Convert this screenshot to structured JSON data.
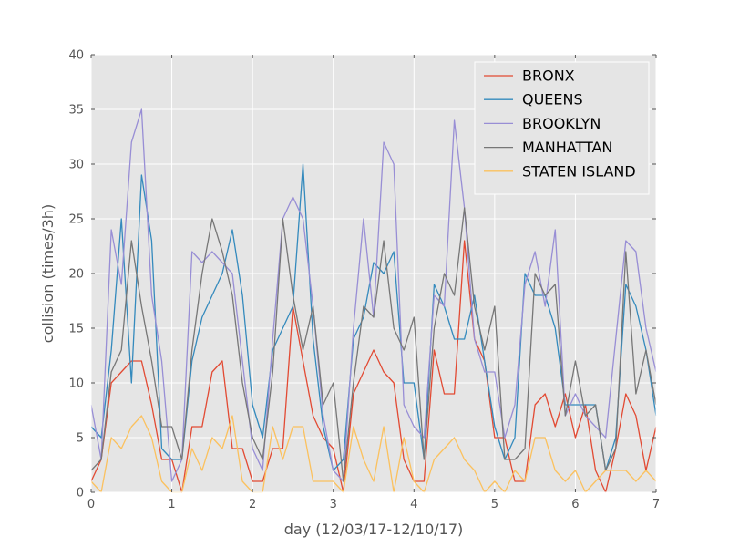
{
  "chart_data": {
    "type": "line",
    "title": "",
    "xlabel": "day (12/03/17-12/10/17)",
    "ylabel": "collision (times/3h)",
    "xlim": [
      0,
      7
    ],
    "ylim": [
      0,
      40
    ],
    "xticks": [
      "0",
      "1",
      "2",
      "3",
      "4",
      "5",
      "6",
      "7"
    ],
    "yticks": [
      "0",
      "5",
      "10",
      "15",
      "20",
      "25",
      "30",
      "35",
      "40"
    ],
    "grid": true,
    "background": "#e5e5e5",
    "legend_position": "top-right",
    "x_step": 0.125,
    "series": [
      {
        "name": "BRONX",
        "color": "#e24a33",
        "values": [
          1,
          3,
          10,
          11,
          12,
          12,
          8,
          3,
          3,
          0,
          6,
          6,
          11,
          12,
          4,
          4,
          1,
          1,
          4,
          4,
          17,
          12,
          7,
          5,
          4,
          0,
          9,
          11,
          13,
          11,
          10,
          3,
          1,
          1,
          13,
          9,
          9,
          23,
          14,
          12,
          5,
          5,
          1,
          1,
          8,
          9,
          6,
          9,
          5,
          8,
          2,
          0,
          4,
          9,
          7,
          2,
          6
        ]
      },
      {
        "name": "QUEENS",
        "color": "#348abd",
        "values": [
          6,
          5,
          13,
          25,
          10,
          29,
          23,
          4,
          3,
          3,
          12,
          16,
          18,
          20,
          24,
          18,
          8,
          5,
          13,
          15,
          17,
          30,
          14,
          6,
          2,
          3,
          14,
          16,
          21,
          20,
          22,
          10,
          10,
          3,
          19,
          17,
          14,
          14,
          18,
          12,
          6,
          3,
          5,
          20,
          18,
          18,
          15,
          8,
          8,
          8,
          8,
          2,
          5,
          19,
          17,
          13,
          7
        ]
      },
      {
        "name": "BROOKLYN",
        "color": "#988ed5",
        "values": [
          8,
          3,
          24,
          19,
          32,
          35,
          18,
          12,
          1,
          3,
          22,
          21,
          22,
          21,
          20,
          12,
          4,
          2,
          14,
          25,
          27,
          25,
          17,
          7,
          2,
          1,
          15,
          25,
          16,
          32,
          30,
          8,
          6,
          5,
          18,
          17,
          34,
          26,
          14,
          11,
          11,
          5,
          8,
          19,
          22,
          17,
          24,
          7,
          9,
          7,
          6,
          5,
          14,
          23,
          22,
          15,
          11
        ]
      },
      {
        "name": "MANHATTAN",
        "color": "#777777",
        "values": [
          2,
          3,
          11,
          13,
          23,
          17,
          12,
          6,
          6,
          3,
          13,
          20,
          25,
          22,
          18,
          10,
          5,
          3,
          11,
          25,
          18,
          13,
          17,
          8,
          10,
          1,
          10,
          17,
          16,
          23,
          15,
          13,
          16,
          3,
          15,
          20,
          18,
          26,
          17,
          13,
          17,
          3,
          3,
          4,
          20,
          18,
          19,
          7,
          12,
          7,
          8,
          2,
          4,
          22,
          9,
          13,
          8
        ]
      },
      {
        "name": "STATEN ISLAND",
        "color": "#fbc15e",
        "values": [
          1,
          0,
          5,
          4,
          6,
          7,
          5,
          1,
          0,
          0,
          4,
          2,
          5,
          4,
          7,
          1,
          0,
          0,
          6,
          3,
          6,
          6,
          1,
          1,
          1,
          0,
          6,
          3,
          1,
          6,
          0,
          5,
          1,
          0,
          3,
          4,
          5,
          3,
          2,
          0,
          1,
          0,
          2,
          1,
          5,
          5,
          2,
          1,
          2,
          0,
          1,
          2,
          2,
          2,
          1,
          2,
          1
        ]
      }
    ]
  }
}
